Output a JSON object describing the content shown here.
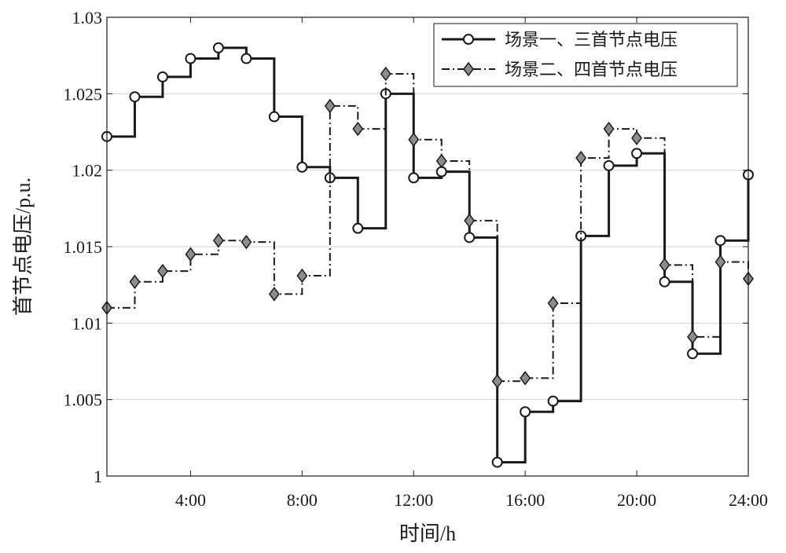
{
  "chart_data": {
    "type": "line",
    "title": "",
    "xlabel": "时间/h",
    "ylabel": "首节点电压/p.u.",
    "x": [
      1,
      2,
      3,
      4,
      5,
      6,
      7,
      8,
      9,
      10,
      11,
      12,
      13,
      14,
      15,
      16,
      17,
      18,
      19,
      20,
      21,
      22,
      23,
      24
    ],
    "xlim": [
      1,
      24
    ],
    "ylim": [
      1,
      1.03
    ],
    "xticks": [
      4,
      8,
      12,
      16,
      20,
      24
    ],
    "xtick_labels": [
      "4:00",
      "8:00",
      "12:00",
      "16:00",
      "20:00",
      "24:00"
    ],
    "yticks": [
      1,
      1.005,
      1.01,
      1.015,
      1.02,
      1.025,
      1.03
    ],
    "ytick_labels": [
      "1",
      "1.005",
      "1.01",
      "1.015",
      "1.02",
      "1.025",
      "1.03"
    ],
    "grid": "y",
    "legend_position": "top-right",
    "step": true,
    "series": [
      {
        "name": "场景一、三首节点电压",
        "style": "solid",
        "marker": "circle",
        "color": "#1a1a1a",
        "values": [
          1.0222,
          1.0248,
          1.0261,
          1.0273,
          1.028,
          1.0273,
          1.0235,
          1.0202,
          1.0195,
          1.0162,
          1.025,
          1.0195,
          1.0199,
          1.0156,
          1.0009,
          1.0042,
          1.0049,
          1.0157,
          1.0203,
          1.0211,
          1.0127,
          1.008,
          1.0154,
          1.0197
        ]
      },
      {
        "name": "场景二、四首节点电压",
        "style": "dashdot",
        "marker": "diamond",
        "color": "#1a1a1a",
        "marker_fill": "#8c8c8c",
        "values": [
          1.011,
          1.0127,
          1.0134,
          1.0145,
          1.0154,
          1.0153,
          1.0119,
          1.0131,
          1.0242,
          1.0227,
          1.0263,
          1.022,
          1.0206,
          1.0167,
          1.0062,
          1.0064,
          1.0113,
          1.0208,
          1.0227,
          1.0221,
          1.0138,
          1.0091,
          1.014,
          1.0129
        ]
      }
    ]
  }
}
